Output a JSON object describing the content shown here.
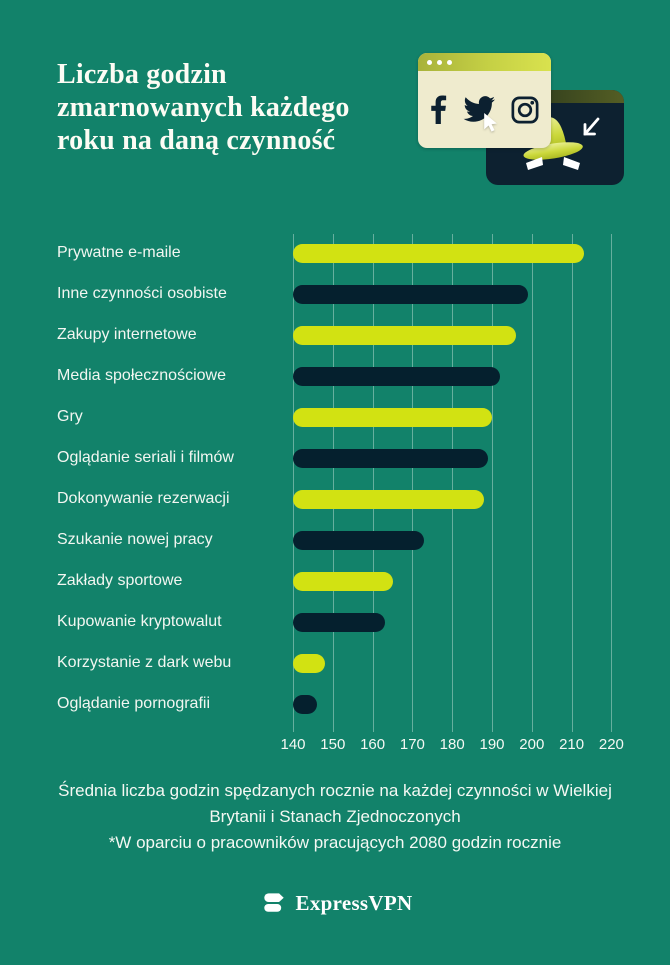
{
  "title": {
    "text": "Liczba godzin zmarnowanych każdego roku na daną czynność",
    "lines": [
      "Liczba godzin",
      "zmarnowanych każdego",
      "roku na daną czynność"
    ]
  },
  "illustration": {
    "icons": [
      "facebook-icon",
      "twitter-icon",
      "instagram-icon",
      "cursor-icon",
      "spy-incognito-icon",
      "arrow-cursor-icon"
    ],
    "colors": {
      "browser_body": "#EFEBCE",
      "browser_bar": "#C6D145",
      "dark_card": "#0D2130",
      "hat_lime": "#CBD83B"
    }
  },
  "chart_data": {
    "type": "bar",
    "orientation": "horizontal",
    "title": "Liczba godzin zmarnowanych każdego roku na daną czynność",
    "categories": [
      "Prywatne e-maile",
      "Inne czynności osobiste",
      "Zakupy internetowe",
      "Media społecznościowe",
      "Gry",
      "Oglądanie seriali i filmów",
      "Dokonywanie rezerwacji",
      "Szukanie nowej pracy",
      "Zakłady sportowe",
      "Kupowanie kryptowalut",
      "Korzystanie z dark webu",
      "Oglądanie pornografii"
    ],
    "values": [
      213,
      199,
      196,
      192,
      190,
      189,
      188,
      173,
      165,
      163,
      148,
      146
    ],
    "unit": "godziny rocznie",
    "x_ticks": [
      140,
      150,
      160,
      170,
      180,
      190,
      200,
      210,
      220
    ],
    "xlim": [
      140,
      222
    ],
    "bars_start_at": 140,
    "grid": "vertical gridlines on",
    "legend": "none",
    "bar_colors_alternating": [
      "#D2E212",
      "#05202E"
    ]
  },
  "footnotes": {
    "line1": "Średnia liczba godzin spędzanych rocznie na każdej czynności w Wielkiej Brytanii i Stanach Zjednoczonych",
    "line2": "*W oparciu o pracowników pracujących 2080 godzin rocznie"
  },
  "logo": {
    "text": "ExpressVPN"
  },
  "colors": {
    "background": "#12826A",
    "bar_lime": "#D2E212",
    "bar_navy": "#05202E",
    "text": "#F2F6F1"
  }
}
